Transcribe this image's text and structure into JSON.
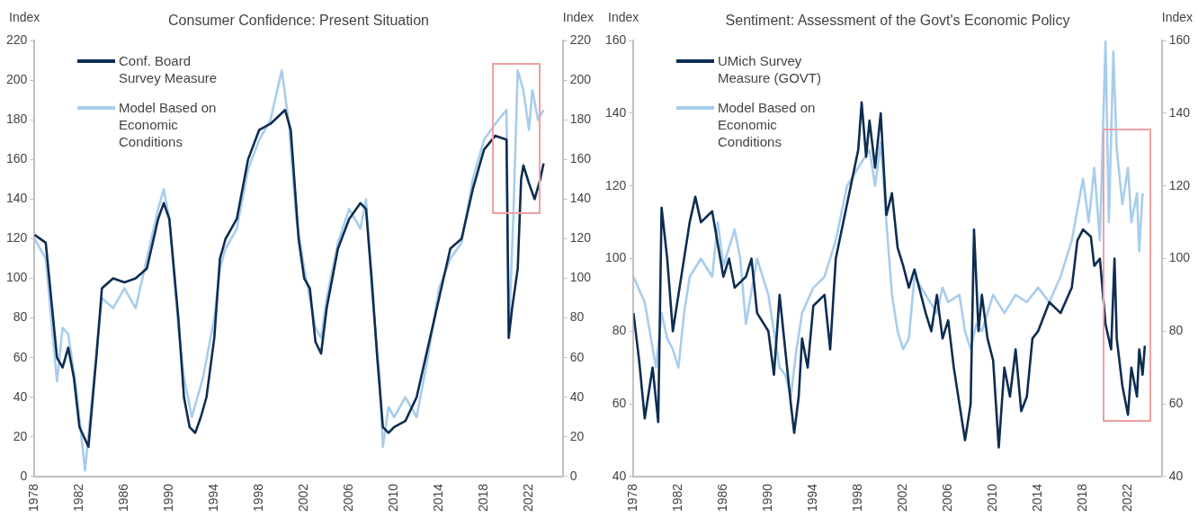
{
  "chart_data": [
    {
      "type": "line",
      "title": "Consumer Confidence: Present Situation",
      "ylabel": "Index",
      "y2label": "Index",
      "xlim": [
        1978,
        2025
      ],
      "xticks": [
        1978,
        1982,
        1986,
        1990,
        1994,
        1998,
        2002,
        2006,
        2010,
        2014,
        2018,
        2022
      ],
      "ylim": [
        0,
        220
      ],
      "yticks": [
        0,
        20,
        40,
        60,
        80,
        100,
        120,
        140,
        160,
        180,
        200,
        220
      ],
      "y2lim": [
        0,
        220
      ],
      "y2ticks": [
        0,
        20,
        40,
        60,
        80,
        100,
        120,
        140,
        160,
        180,
        200,
        220
      ],
      "grid": false,
      "legend": "top left",
      "marker": "none",
      "line_style": "solid",
      "series": [
        {
          "name": "Conf. Board Survey Measure",
          "color": "#0d2d52",
          "x": [
            1978,
            1979,
            1980,
            1980.5,
            1981,
            1981.5,
            1982,
            1982.8,
            1983.5,
            1984,
            1985,
            1986,
            1987,
            1988,
            1989,
            1989.5,
            1990,
            1990.8,
            1991.3,
            1991.8,
            1992.3,
            1992.8,
            1993.3,
            1994,
            1994.5,
            1995,
            1996,
            1997,
            1998,
            1999,
            2000.3,
            2000.8,
            2001.5,
            2002,
            2002.5,
            2003,
            2003.5,
            2004,
            2005,
            2006,
            2007,
            2007.5,
            2008,
            2008.5,
            2009,
            2009.5,
            2010,
            2011,
            2012,
            2013,
            2014,
            2015,
            2016,
            2017,
            2018,
            2019,
            2020,
            2020.2,
            2020.5,
            2021,
            2021.3,
            2021.5,
            2022,
            2022.5,
            2023,
            2023.3
          ],
          "values": [
            122,
            118,
            60,
            55,
            65,
            50,
            25,
            15,
            60,
            95,
            100,
            98,
            100,
            105,
            130,
            138,
            130,
            80,
            40,
            25,
            22,
            30,
            40,
            70,
            110,
            120,
            130,
            160,
            175,
            178,
            185,
            175,
            120,
            100,
            95,
            68,
            62,
            85,
            115,
            130,
            138,
            135,
            100,
            60,
            25,
            22,
            25,
            28,
            40,
            65,
            90,
            115,
            120,
            145,
            165,
            172,
            170,
            70,
            85,
            105,
            150,
            157,
            148,
            140,
            150,
            158
          ]
        },
        {
          "name": "Model Based on Economic Conditions",
          "color": "#a8cdec",
          "x": [
            1978,
            1979,
            1980,
            1980.5,
            1981,
            1981.7,
            1982.5,
            1983.3,
            1984,
            1985,
            1986,
            1987,
            1988,
            1989,
            1989.5,
            1990,
            1990.8,
            1991.3,
            1992,
            1993,
            1994,
            1994.5,
            1995,
            1996,
            1997,
            1998,
            1999,
            2000,
            2000.6,
            2001.3,
            2002,
            2002.5,
            2003,
            2003.5,
            2004,
            2005,
            2006,
            2007,
            2007.5,
            2008,
            2008.7,
            2009,
            2009.5,
            2010,
            2011,
            2012,
            2013,
            2014,
            2015,
            2016,
            2017,
            2018,
            2019,
            2020,
            2020.2,
            2020.6,
            2021,
            2021.5,
            2022,
            2022.3,
            2022.8,
            2023.3
          ],
          "values": [
            120,
            110,
            48,
            75,
            72,
            45,
            3,
            50,
            90,
            85,
            95,
            85,
            110,
            135,
            145,
            130,
            75,
            50,
            30,
            50,
            80,
            105,
            115,
            125,
            155,
            170,
            180,
            205,
            180,
            130,
            105,
            90,
            75,
            70,
            90,
            118,
            135,
            125,
            140,
            95,
            50,
            15,
            35,
            30,
            40,
            30,
            60,
            95,
            110,
            118,
            150,
            170,
            178,
            185,
            70,
            130,
            205,
            195,
            175,
            195,
            180,
            185
          ]
        }
      ]
    },
    {
      "type": "line",
      "title": "Sentiment: Assessment of the Govt's Economic Policy",
      "ylabel": "Index",
      "y2label": "Index",
      "xlim": [
        1978,
        2025
      ],
      "xticks": [
        1978,
        1982,
        1986,
        1990,
        1994,
        1998,
        2002,
        2006,
        2010,
        2014,
        2018,
        2022
      ],
      "ylim": [
        40,
        160
      ],
      "yticks": [
        40,
        60,
        80,
        100,
        120,
        140,
        160
      ],
      "y2lim": [
        40,
        160
      ],
      "y2ticks": [
        40,
        60,
        80,
        100,
        120,
        140,
        160
      ],
      "grid": false,
      "legend": "top left",
      "marker": "none",
      "line_style": "solid",
      "series": [
        {
          "name": "UMich Survey Measure (GOVT)",
          "color": "#0d2d52",
          "x": [
            1978,
            1978.5,
            1979,
            1979.7,
            1980.2,
            1980.5,
            1981,
            1981.5,
            1982,
            1982.5,
            1983,
            1983.5,
            1984,
            1985,
            1986,
            1986.5,
            1987,
            1988,
            1988.5,
            1989,
            1990,
            1990.5,
            1991,
            1991.5,
            1992,
            1992.3,
            1992.7,
            1993,
            1993.5,
            1994,
            1995,
            1995.5,
            1996,
            1997,
            1998,
            1998.3,
            1998.7,
            1999,
            1999.5,
            2000,
            2000.5,
            2001,
            2001.5,
            2002,
            2002.5,
            2003,
            2004,
            2004.5,
            2005,
            2005.5,
            2006,
            2006.5,
            2007,
            2007.5,
            2008,
            2008.3,
            2008.7,
            2009,
            2009.5,
            2010,
            2010.5,
            2011,
            2011.5,
            2012,
            2012.5,
            2013,
            2013.5,
            2014,
            2015,
            2016,
            2017,
            2017.5,
            2018,
            2018.7,
            2019,
            2019.5,
            2020,
            2020.5,
            2020.8,
            2021,
            2021.5,
            2022,
            2022.3,
            2022.8,
            2023,
            2023.3,
            2023.5
          ],
          "values": [
            85,
            72,
            56,
            70,
            55,
            114,
            100,
            80,
            90,
            100,
            110,
            117,
            110,
            113,
            95,
            100,
            92,
            95,
            100,
            85,
            80,
            68,
            90,
            75,
            60,
            52,
            62,
            78,
            70,
            87,
            90,
            75,
            100,
            115,
            130,
            143,
            128,
            138,
            125,
            140,
            112,
            118,
            103,
            98,
            92,
            97,
            85,
            80,
            90,
            78,
            83,
            70,
            60,
            50,
            60,
            108,
            80,
            90,
            78,
            72,
            48,
            70,
            62,
            75,
            58,
            62,
            78,
            80,
            88,
            85,
            92,
            105,
            108,
            106,
            98,
            100,
            82,
            75,
            100,
            78,
            65,
            57,
            70,
            62,
            75,
            68,
            76
          ]
        },
        {
          "name": "Model Based on Economic Conditions",
          "color": "#a8cdec",
          "x": [
            1978,
            1979,
            1980,
            1980.5,
            1981,
            1981.5,
            1982,
            1982.5,
            1983,
            1984,
            1985,
            1985.5,
            1986,
            1987,
            1987.5,
            1988,
            1989,
            1990,
            1990.5,
            1991,
            1991.5,
            1992,
            1992.5,
            1993,
            1994,
            1995,
            1996,
            1997,
            1998,
            1999,
            1999.5,
            2000,
            2000.5,
            2001,
            2001.5,
            2002,
            2002.5,
            2003,
            2004,
            2005,
            2005.5,
            2006,
            2007,
            2007.5,
            2008,
            2008.5,
            2009,
            2010,
            2011,
            2012,
            2013,
            2014,
            2015,
            2016,
            2017,
            2018,
            2018.5,
            2019,
            2019.5,
            2020,
            2020.3,
            2020.7,
            2021,
            2021.5,
            2022,
            2022.3,
            2022.8,
            2023,
            2023.3
          ],
          "values": [
            95,
            88,
            70,
            85,
            78,
            75,
            70,
            85,
            95,
            100,
            95,
            110,
            98,
            108,
            100,
            82,
            100,
            90,
            80,
            70,
            68,
            62,
            75,
            85,
            92,
            95,
            105,
            120,
            125,
            130,
            120,
            132,
            110,
            90,
            80,
            75,
            78,
            95,
            90,
            85,
            92,
            88,
            90,
            80,
            75,
            82,
            80,
            90,
            85,
            90,
            88,
            92,
            88,
            95,
            105,
            122,
            110,
            125,
            105,
            160,
            110,
            157,
            130,
            115,
            125,
            110,
            118,
            102,
            118
          ]
        }
      ]
    }
  ]
}
